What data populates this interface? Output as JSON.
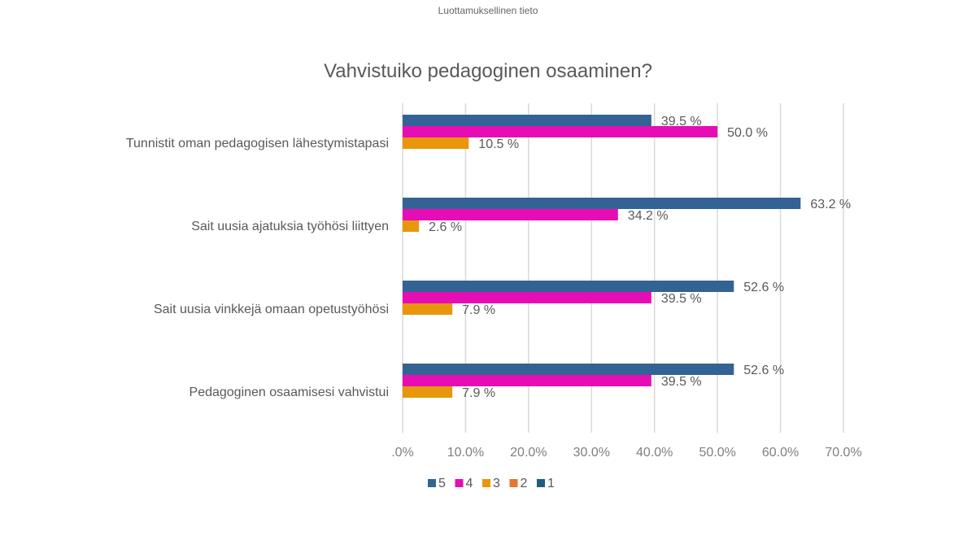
{
  "header": {
    "confidential": "Luottamuksellinen tieto"
  },
  "chart_data": {
    "type": "bar",
    "orientation": "horizontal",
    "title": "Vahvistuiko pedagoginen osaaminen?",
    "categories": [
      "Tunnistit oman pedagogisen lähestymistapasi",
      "Sait uusia ajatuksia työhösi liittyen",
      "Sait uusia vinkkejä omaan opetustyöhösi",
      "Pedagoginen osaamisesi vahvistui"
    ],
    "series": [
      {
        "name": "5",
        "color": "#336394",
        "values": [
          39.5,
          63.2,
          52.6,
          52.6
        ],
        "labels": [
          "39.5 %",
          "63.2 %",
          "52.6 %",
          "52.6 %"
        ]
      },
      {
        "name": "4",
        "color": "#E60DB4",
        "values": [
          50.0,
          34.2,
          39.5,
          39.5
        ],
        "labels": [
          "50.0 %",
          "34.2 %",
          "39.5 %",
          "39.5 %"
        ]
      },
      {
        "name": "3",
        "color": "#E8960C",
        "values": [
          10.5,
          2.6,
          7.9,
          7.9
        ],
        "labels": [
          "10.5 %",
          "2.6 %",
          "7.9 %",
          "7.9 %"
        ]
      },
      {
        "name": "2",
        "color": "#E87530",
        "values": [
          0,
          0,
          0,
          0
        ],
        "labels": []
      },
      {
        "name": "1",
        "color": "#1F5F80",
        "values": [
          0,
          0,
          0,
          0
        ],
        "labels": []
      }
    ],
    "xlim": [
      0,
      70
    ],
    "xticks": [
      ".0%",
      "10.0%",
      "20.0%",
      "30.0%",
      "40.0%",
      "50.0%",
      "60.0%",
      "70.0%"
    ],
    "grid": true,
    "legend_position": "bottom"
  }
}
